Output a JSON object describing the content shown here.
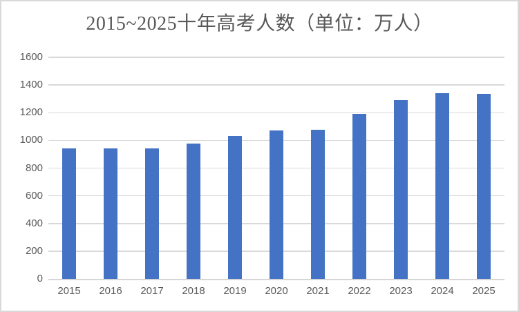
{
  "window": {
    "background": "#ffffff",
    "border_color": "#d9d9d9"
  },
  "chart_data": {
    "type": "bar",
    "title": "2015~2025十年高考人数（单位：万人）",
    "categories": [
      "2015",
      "2016",
      "2017",
      "2018",
      "2019",
      "2020",
      "2021",
      "2022",
      "2023",
      "2024",
      "2025"
    ],
    "values": [
      942,
      940,
      940,
      975,
      1031,
      1071,
      1078,
      1193,
      1291,
      1342,
      1335
    ],
    "xlabel": "",
    "ylabel": "",
    "ylim": [
      0,
      1600
    ],
    "yticks": [
      0,
      200,
      400,
      600,
      800,
      1000,
      1200,
      1400,
      1600
    ],
    "grid": "horizontal",
    "legend": "none",
    "colors": {
      "bar": "#4472c4",
      "gridline": "#d9d9d9",
      "axis_line": "#d6d6d6",
      "tick_label": "#595959",
      "title": "#595959"
    }
  }
}
